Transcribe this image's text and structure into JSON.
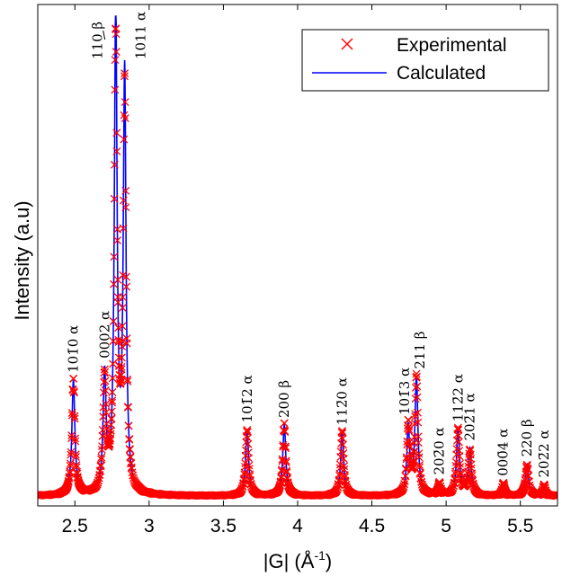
{
  "chart_data": {
    "type": "line",
    "title": "",
    "xlabel": "|G| (Å",
    "xlabel_sup": "-1",
    "xlabel_close": ")",
    "ylabel": "Intensity (a.u)",
    "xlim": [
      2.25,
      5.75
    ],
    "ylim": [
      0,
      1
    ],
    "xticks": [
      {
        "value": 2.5,
        "label": "2.5"
      },
      {
        "value": 3.0,
        "label": "3"
      },
      {
        "value": 3.5,
        "label": "3.5"
      },
      {
        "value": 4.0,
        "label": "4"
      },
      {
        "value": 4.5,
        "label": "4.5"
      },
      {
        "value": 5.0,
        "label": "5"
      },
      {
        "value": 5.5,
        "label": "5.5"
      }
    ],
    "legend": {
      "placement": "top-right",
      "entries": [
        {
          "label": "Experimental",
          "marker": "x",
          "color": "#ff0000"
        },
        {
          "label": "Calculated",
          "marker": "line",
          "color": "#0000ff"
        }
      ]
    },
    "series": [
      {
        "name": "Experimental",
        "color": "#ff0000",
        "style": "markers-x"
      },
      {
        "name": "Calculated",
        "color": "#0000ff",
        "style": "line"
      }
    ],
    "baseline": 0.015,
    "peaks": [
      {
        "x": 2.49,
        "height": 0.235,
        "width": 0.012,
        "label": "101̄0 α"
      },
      {
        "x": 2.7,
        "height": 0.24,
        "width": 0.012,
        "label": "0002 α"
      },
      {
        "x": 2.775,
        "height": 1.0,
        "width": 0.011,
        "label": "110 β"
      },
      {
        "x": 2.835,
        "height": 0.86,
        "width": 0.011,
        "label": "1011 α"
      },
      {
        "x": 3.66,
        "height": 0.135,
        "width": 0.012,
        "label": "101̄2 α"
      },
      {
        "x": 3.91,
        "height": 0.145,
        "width": 0.012,
        "label": "200 β"
      },
      {
        "x": 4.3,
        "height": 0.13,
        "width": 0.012,
        "label": "112̄0 α"
      },
      {
        "x": 4.745,
        "height": 0.14,
        "width": 0.011,
        "label": "101̄3 α"
      },
      {
        "x": 4.8,
        "height": 0.24,
        "width": 0.012,
        "label": "211 β"
      },
      {
        "x": 4.955,
        "height": 0.025,
        "width": 0.01,
        "label": "202̄0 α"
      },
      {
        "x": 5.08,
        "height": 0.135,
        "width": 0.012,
        "label": "112̄2 α"
      },
      {
        "x": 5.16,
        "height": 0.095,
        "width": 0.012,
        "label": "202̄1 α"
      },
      {
        "x": 5.385,
        "height": 0.025,
        "width": 0.01,
        "label": "000̄4 α"
      },
      {
        "x": 5.545,
        "height": 0.065,
        "width": 0.012,
        "label": "220 β"
      },
      {
        "x": 5.66,
        "height": 0.022,
        "width": 0.01,
        "label": "202̄2 α"
      }
    ]
  }
}
